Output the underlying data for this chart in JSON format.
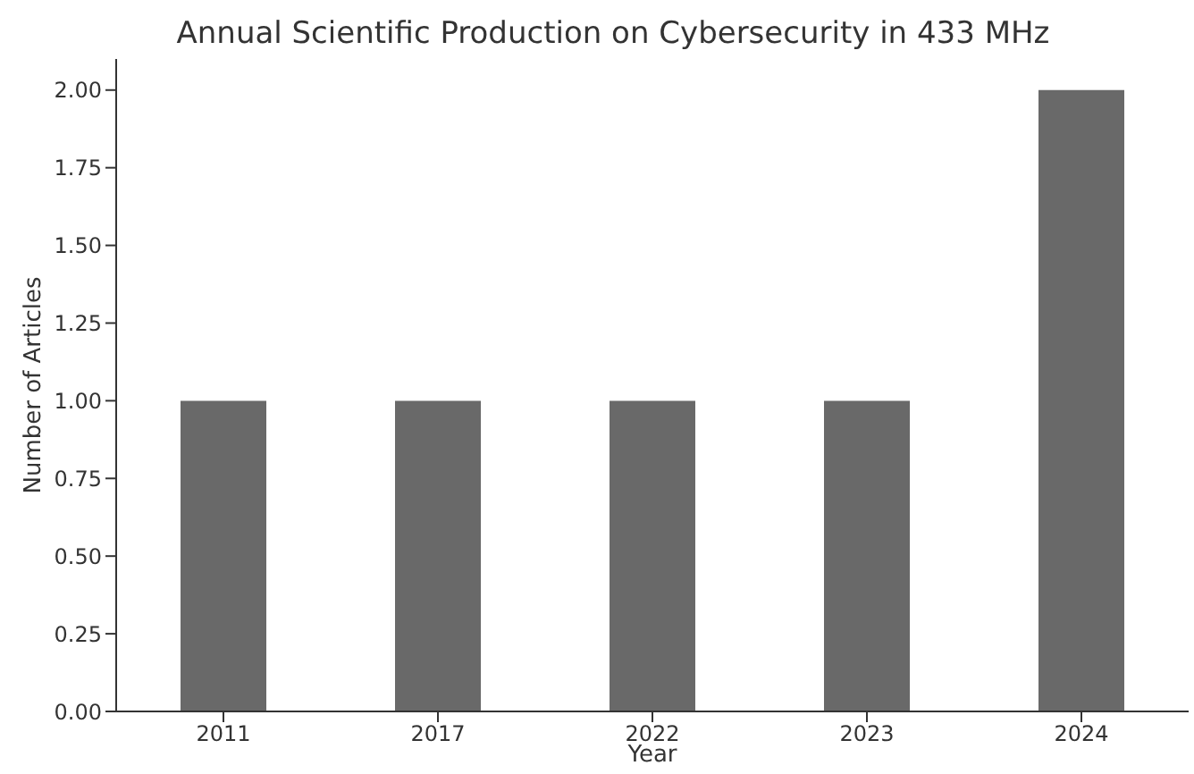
{
  "chart_data": {
    "type": "bar",
    "title": "Annual Scientific Production on Cybersecurity in 433 MHz",
    "xlabel": "Year",
    "ylabel": "Number of Articles",
    "categories": [
      "2011",
      "2017",
      "2022",
      "2023",
      "2024"
    ],
    "values": [
      1,
      1,
      1,
      1,
      2
    ],
    "color": "#696969",
    "ylim": [
      0,
      2.1
    ],
    "yticks": [
      {
        "value": 0,
        "label": "0.00"
      },
      {
        "value": 0.25,
        "label": "0.25"
      },
      {
        "value": 0.5,
        "label": "0.50"
      },
      {
        "value": 0.75,
        "label": "0.75"
      },
      {
        "value": 1,
        "label": "1.00"
      },
      {
        "value": 1.25,
        "label": "1.25"
      },
      {
        "value": 1.5,
        "label": "1.50"
      },
      {
        "value": 1.75,
        "label": "1.75"
      },
      {
        "value": 2,
        "label": "2.00"
      }
    ],
    "grid": false,
    "legend": false
  }
}
